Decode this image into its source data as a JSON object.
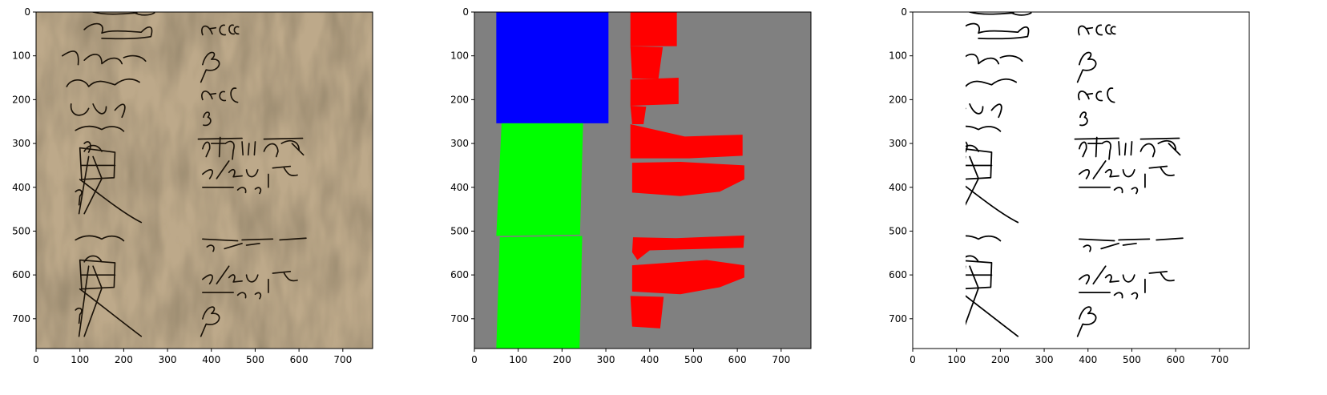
{
  "chart_data": [
    {
      "type": "image",
      "panel": "original",
      "xlim": [
        0,
        768
      ],
      "ylim": [
        768,
        0
      ],
      "x_ticks": [
        0,
        100,
        200,
        300,
        400,
        500,
        600,
        700
      ],
      "y_ticks": [
        0,
        100,
        200,
        300,
        400,
        500,
        600,
        700
      ],
      "background_color": "#bda98a",
      "text_fragments": [
        "ΑΕC",
        "β",
        "ΑΕC",
        "β",
        "β"
      ]
    },
    {
      "type": "segmentation-mask",
      "panel": "layout-mask",
      "xlim": [
        0,
        768
      ],
      "ylim": [
        768,
        0
      ],
      "x_ticks": [
        0,
        100,
        200,
        300,
        400,
        500,
        600,
        700
      ],
      "y_ticks": [
        0,
        100,
        200,
        300,
        400,
        500,
        600,
        700
      ],
      "background_color": "#808080",
      "colors": {
        "blue": "#0000ff",
        "green": "#00ff00",
        "red": "#ff0000"
      },
      "regions": [
        {
          "color": "blue",
          "points": [
            [
              50,
              0
            ],
            [
              306,
              0
            ],
            [
              306,
              254
            ],
            [
              50,
              254
            ]
          ]
        },
        {
          "color": "green",
          "points": [
            [
              62,
              254
            ],
            [
              248,
              254
            ],
            [
              241,
              508
            ],
            [
              50,
              511
            ]
          ]
        },
        {
          "color": "green",
          "points": [
            [
              58,
              514
            ],
            [
              246,
              511
            ],
            [
              240,
              768
            ],
            [
              50,
              768
            ]
          ]
        },
        {
          "color": "red",
          "points": [
            [
              356,
              0
            ],
            [
              462,
              0
            ],
            [
              462,
              78
            ],
            [
              356,
              78
            ]
          ]
        },
        {
          "color": "red",
          "points": [
            [
              356,
              78
            ],
            [
              430,
              80
            ],
            [
              420,
              152
            ],
            [
              360,
              152
            ]
          ]
        },
        {
          "color": "red",
          "points": [
            [
              356,
              154
            ],
            [
              466,
              150
            ],
            [
              466,
              210
            ],
            [
              356,
              214
            ]
          ]
        },
        {
          "color": "red",
          "points": [
            [
              356,
              214
            ],
            [
              392,
              216
            ],
            [
              386,
              256
            ],
            [
              360,
              256
            ]
          ]
        },
        {
          "color": "red",
          "points": [
            [
              356,
              256
            ],
            [
              480,
              284
            ],
            [
              612,
              280
            ],
            [
              612,
              328
            ],
            [
              490,
              334
            ],
            [
              356,
              334
            ]
          ]
        },
        {
          "color": "red",
          "points": [
            [
              360,
              344
            ],
            [
              470,
              342
            ],
            [
              616,
              350
            ],
            [
              616,
              382
            ],
            [
              560,
              410
            ],
            [
              470,
              420
            ],
            [
              360,
              412
            ]
          ]
        },
        {
          "color": "red",
          "points": [
            [
              362,
              514
            ],
            [
              460,
              516
            ],
            [
              616,
              510
            ],
            [
              614,
              538
            ],
            [
              400,
              544
            ],
            [
              372,
              566
            ],
            [
              360,
              548
            ]
          ]
        },
        {
          "color": "red",
          "points": [
            [
              360,
              578
            ],
            [
              530,
              566
            ],
            [
              616,
              578
            ],
            [
              616,
              606
            ],
            [
              560,
              628
            ],
            [
              470,
              644
            ],
            [
              360,
              638
            ]
          ]
        },
        {
          "color": "red",
          "points": [
            [
              356,
              648
            ],
            [
              432,
              650
            ],
            [
              424,
              722
            ],
            [
              360,
              718
            ]
          ]
        }
      ]
    },
    {
      "type": "image",
      "panel": "binarized",
      "xlim": [
        0,
        768
      ],
      "ylim": [
        768,
        0
      ],
      "x_ticks": [
        0,
        100,
        200,
        300,
        400,
        500,
        600,
        700
      ],
      "y_ticks": [
        0,
        100,
        200,
        300,
        400,
        500,
        600,
        700
      ],
      "background_color": "#ffffff",
      "text_fragments": [
        "ΑΕC",
        "β",
        "ΑΕC",
        "β",
        "β"
      ]
    }
  ]
}
